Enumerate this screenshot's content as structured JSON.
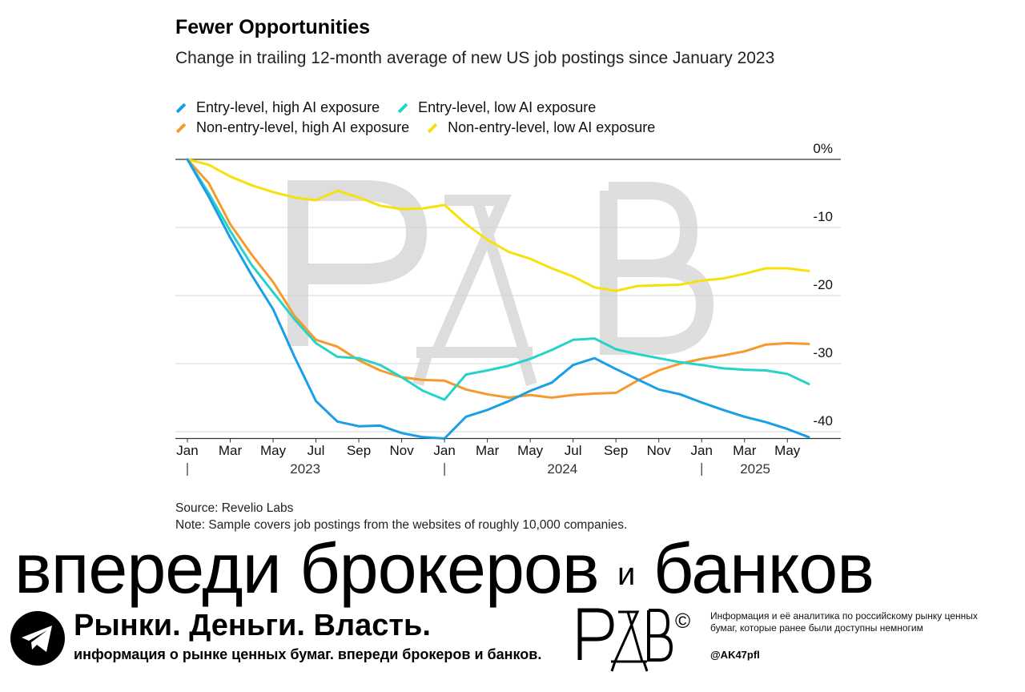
{
  "chart_data": {
    "type": "line",
    "title": "Fewer Opportunities",
    "subtitle": "Change in trailing 12-month average of new US job postings since January 2023",
    "x_tick_labels": [
      "Jan",
      "Mar",
      "May",
      "Jul",
      "Sep",
      "Nov",
      "Jan",
      "Mar",
      "May",
      "Jul",
      "Sep",
      "Nov",
      "Jan",
      "Mar",
      "May"
    ],
    "year_labels": [
      "2023",
      "2024",
      "2025"
    ],
    "y_tick_labels": [
      "0%",
      "-10",
      "-20",
      "-30",
      "-40"
    ],
    "y_ticks": [
      0,
      -10,
      -20,
      -30,
      -40
    ],
    "ylim": [
      -41,
      0
    ],
    "x_range": [
      "2023-01",
      "2025-06"
    ],
    "grid": true,
    "legend_position": "top",
    "series": [
      {
        "name": "Entry-level, high AI exposure",
        "color": "#1a9fe6",
        "x": [
          "2023-01",
          "2023-02",
          "2023-03",
          "2023-04",
          "2023-05",
          "2023-06",
          "2023-07",
          "2023-08",
          "2023-09",
          "2023-10",
          "2023-11",
          "2023-12",
          "2024-01",
          "2024-02",
          "2024-03",
          "2024-04",
          "2024-05",
          "2024-06",
          "2024-07",
          "2024-08",
          "2024-09",
          "2024-10",
          "2024-11",
          "2024-12",
          "2025-01",
          "2025-02",
          "2025-03",
          "2025-04",
          "2025-05",
          "2025-06"
        ],
        "values": [
          0,
          -5.5,
          -11.5,
          -17,
          -22,
          -29,
          -35.5,
          -38.5,
          -39.2,
          -39.1,
          -40.2,
          -40.8,
          -41,
          -37.8,
          -36.8,
          -35.5,
          -34,
          -32.8,
          -30.2,
          -29.2,
          -30.8,
          -32.3,
          -33.8,
          -34.5,
          -35.7,
          -36.8,
          -37.8,
          -38.6,
          -39.6,
          -40.8
        ]
      },
      {
        "name": "Entry-level, low AI exposure",
        "color": "#27d3c9",
        "x": [
          "2023-01",
          "2023-02",
          "2023-03",
          "2023-04",
          "2023-05",
          "2023-06",
          "2023-07",
          "2023-08",
          "2023-09",
          "2023-10",
          "2023-11",
          "2023-12",
          "2024-01",
          "2024-02",
          "2024-03",
          "2024-04",
          "2024-05",
          "2024-06",
          "2024-07",
          "2024-08",
          "2024-09",
          "2024-10",
          "2024-11",
          "2024-12",
          "2025-01",
          "2025-02",
          "2025-03",
          "2025-04",
          "2025-05",
          "2025-06"
        ],
        "values": [
          0,
          -5,
          -10.5,
          -15.5,
          -19.5,
          -23.5,
          -27,
          -29,
          -29.2,
          -30.2,
          -32,
          -34,
          -35.3,
          -31.6,
          -31,
          -30.3,
          -29.3,
          -28,
          -26.5,
          -26.3,
          -27.9,
          -28.6,
          -29.2,
          -29.8,
          -30.2,
          -30.7,
          -30.9,
          -31,
          -31.5,
          -33
        ]
      },
      {
        "name": "Non-entry-level, high AI exposure",
        "color": "#f59a2c",
        "x": [
          "2023-01",
          "2023-02",
          "2023-03",
          "2023-04",
          "2023-05",
          "2023-06",
          "2023-07",
          "2023-08",
          "2023-09",
          "2023-10",
          "2023-11",
          "2023-12",
          "2024-01",
          "2024-02",
          "2024-03",
          "2024-04",
          "2024-05",
          "2024-06",
          "2024-07",
          "2024-08",
          "2024-09",
          "2024-10",
          "2024-11",
          "2024-12",
          "2025-01",
          "2025-02",
          "2025-03",
          "2025-04",
          "2025-05",
          "2025-06"
        ],
        "values": [
          0,
          -3.5,
          -9.5,
          -14,
          -18,
          -23,
          -26.5,
          -27.5,
          -29.5,
          -31,
          -32,
          -32.4,
          -32.5,
          -33.8,
          -34.5,
          -35,
          -34.6,
          -35,
          -34.6,
          -34.4,
          -34.3,
          -32.5,
          -31,
          -30,
          -29.3,
          -28.8,
          -28.2,
          -27.2,
          -27,
          -27.1
        ]
      },
      {
        "name": "Non-entry-level, low AI exposure",
        "color": "#f5e20a",
        "x": [
          "2023-01",
          "2023-02",
          "2023-03",
          "2023-04",
          "2023-05",
          "2023-06",
          "2023-07",
          "2023-08",
          "2023-09",
          "2023-10",
          "2023-11",
          "2023-12",
          "2024-01",
          "2024-02",
          "2024-03",
          "2024-04",
          "2024-05",
          "2024-06",
          "2024-07",
          "2024-08",
          "2024-09",
          "2024-10",
          "2024-11",
          "2024-12",
          "2025-01",
          "2025-02",
          "2025-03",
          "2025-04",
          "2025-05",
          "2025-06"
        ],
        "values": [
          0,
          -0.8,
          -2.5,
          -3.8,
          -4.8,
          -5.6,
          -6,
          -4.6,
          -5.6,
          -6.8,
          -7.3,
          -7.2,
          -6.7,
          -9.5,
          -11.8,
          -13.6,
          -14.6,
          -16,
          -17.2,
          -18.8,
          -19.3,
          -18.6,
          -18.5,
          -18.4,
          -17.8,
          -17.5,
          -16.8,
          -16,
          -16,
          -16.4
        ]
      }
    ],
    "source": "Source: Revelio Labs",
    "note": "Note: Sample covers job postings from the websites of roughly 10,000 companies."
  },
  "banner": {
    "part1": "впереди брокеров",
    "mid": "и",
    "part2": "банков"
  },
  "footer": {
    "headline": "Рынки. Деньги. Власть.",
    "sub": "информация о рынке ценных бумаг. впереди брокеров и банков.",
    "logo_text": "РДВ",
    "copyright": "©",
    "info": "Информация и её аналитика по российскому рынку ценных бумаг, которые ранее были доступны немногим",
    "handle": "@AK47pfl"
  },
  "icons": {
    "telegram": "telegram-icon",
    "watermark": "rdb-watermark"
  }
}
